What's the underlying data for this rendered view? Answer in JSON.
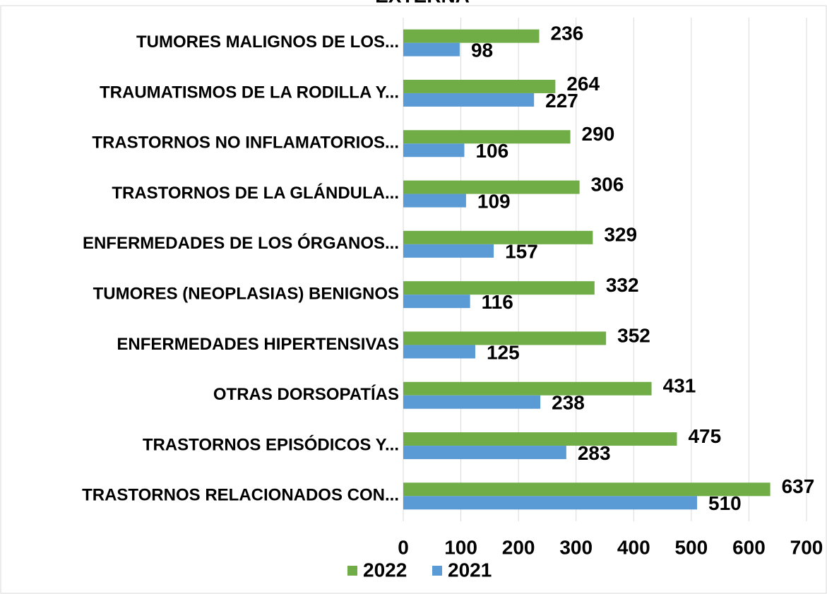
{
  "chart_data": {
    "type": "hbar",
    "title": "EXTERNA",
    "categories": [
      "TUMORES MALIGNOS DE LOS...",
      "TRAUMATISMOS DE LA RODILLA Y...",
      "TRASTORNOS NO INFLAMATORIOS...",
      "TRASTORNOS DE LA GLÁNDULA...",
      "ENFERMEDADES DE LOS ÓRGANOS...",
      "TUMORES (NEOPLASIAS) BENIGNOS",
      "ENFERMEDADES HIPERTENSIVAS",
      "OTRAS DORSOPATÍAS",
      "TRASTORNOS EPISÓDICOS Y...",
      "TRASTORNOS RELACIONADOS CON..."
    ],
    "series": [
      {
        "name": "2022",
        "color": "#70ad47",
        "values": [
          236,
          264,
          290,
          306,
          329,
          332,
          352,
          431,
          475,
          637
        ]
      },
      {
        "name": "2021",
        "color": "#5b9bd5",
        "values": [
          98,
          227,
          106,
          109,
          157,
          116,
          125,
          238,
          283,
          510
        ]
      }
    ],
    "xlim": [
      0,
      700
    ],
    "xticks": [
      0,
      100,
      200,
      300,
      400,
      500,
      600,
      700
    ],
    "grid": true,
    "legend": "bottom"
  }
}
